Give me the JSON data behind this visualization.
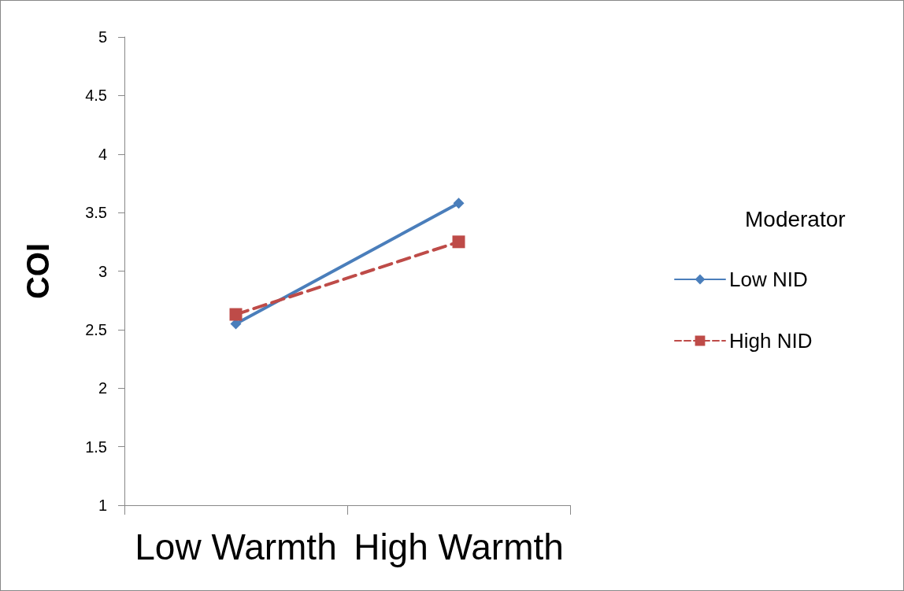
{
  "chart_data": {
    "type": "line",
    "ylabel": "COI",
    "legend_title": "Moderator",
    "categories": [
      "Low Warmth",
      "High Warmth"
    ],
    "series": [
      {
        "name": "Low NID",
        "color": "#4a7ebb",
        "values": [
          2.55,
          3.58
        ],
        "marker": "diamond",
        "line_style": "solid"
      },
      {
        "name": "High NID",
        "color": "#be4b48",
        "values": [
          2.63,
          3.25
        ],
        "marker": "square",
        "line_style": "dashed"
      }
    ],
    "ylim": [
      1,
      5
    ],
    "yticks": [
      1,
      1.5,
      2,
      2.5,
      3,
      3.5,
      4,
      4.5,
      5
    ],
    "grid": false,
    "legend": "right"
  }
}
